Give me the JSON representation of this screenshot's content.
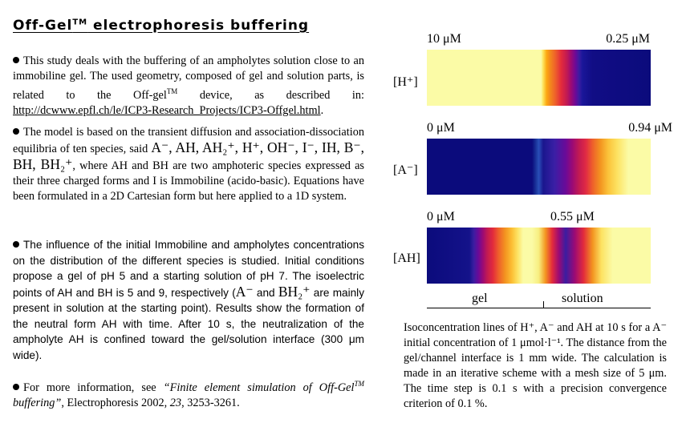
{
  "title": {
    "main": "Off-Gel",
    "sup": "TM",
    "rest": " electrophoresis buffering"
  },
  "paragraphs": {
    "p1": {
      "text": "This study deals with the buffering of an ampholytes solution close to an immobiline gel. The used geometry, composed of gel and solution parts, is related to the Off-gel",
      "sup": "TM",
      "text2": " device, as described in: ",
      "url": "http://dcwww.epfl.ch/le/ICP3-Research_Projects/ICP3-Offgel.html",
      "end": "."
    },
    "p2": {
      "t1": "The model is based on the transient diffusion and association-dissociation equilibria of ten species, said ",
      "species": "A⁻, AH, AH₂⁺, H⁺, OH⁻, I⁻, IH, B⁻, BH, BH₂⁺",
      "t2": ", where AH and BH are two amphoteric species expressed as their three charged forms and I is Immobiline (acido-basic). Equations have been formulated in a 2D Cartesian form but here applied to a 1D system."
    },
    "p3": {
      "t1": "The influence of the initial Immobiline and ampholytes concentrations on the distribution of the different species is studied. Initial conditions propose a gel of pH 5 and a starting solution of pH 7. The isoelectric points of AH and BH is 5 and 9, respectively (",
      "a": "A⁻",
      "t2": " and ",
      "bh": "BH₂⁺",
      "t3": " are mainly present in solution at the starting point). Results show the formation of the neutral form AH with time. After 10 s, the neutralization of the ampholyte AH is confined toward the gel/solution interface (300 μm wide)."
    },
    "p4": {
      "t1": "For more information, see ",
      "italic": "“Finite element simulation of Off-Gel",
      "sup": "TM",
      "italic2": " buffering”",
      "t2": ", Electrophoresis 2002, ",
      "vol": "23",
      "t3": ", 3253-3261."
    }
  },
  "figure": {
    "panels": [
      {
        "label": "[H⁺]",
        "min": "10 μM",
        "max": "0.25 μM"
      },
      {
        "label": "[A⁻]",
        "min": "0 μM",
        "max": "0.94 μM"
      },
      {
        "label": "[AH]",
        "min": "0 μM",
        "max": "0.55 μM"
      }
    ],
    "axis": {
      "left": "gel",
      "right": "solution"
    }
  },
  "caption": "Isoconcentration lines of H⁺, A⁻ and AH at 10 s for a A⁻ initial concentration of 1 μmol·l⁻¹. The distance from the gel/channel interface is 1 mm wide. The calculation is made in an iterative scheme with a mesh size of 5 μm. The time step is 0.1 s with a precision convergence criterion of 0.1 %."
}
